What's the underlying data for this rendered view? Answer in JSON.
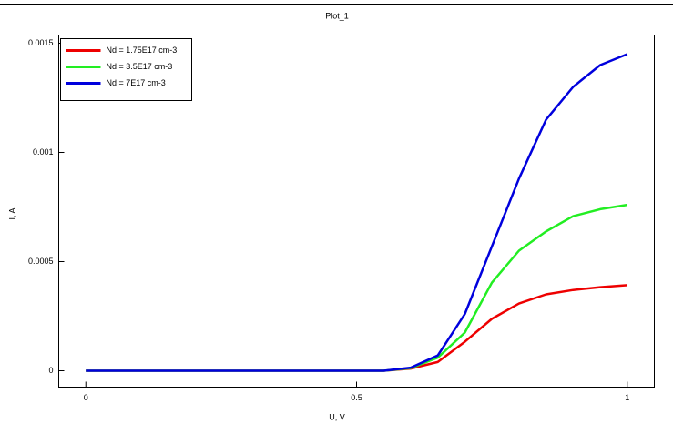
{
  "chart_data": {
    "type": "line",
    "title": "Plot_1",
    "x_label": "U, V",
    "y_label": "I, A",
    "x": [
      0,
      0.05,
      0.1,
      0.15,
      0.2,
      0.25,
      0.3,
      0.35,
      0.4,
      0.45,
      0.5,
      0.55,
      0.6,
      0.65,
      0.7,
      0.75,
      0.8,
      0.85,
      0.9,
      0.95,
      1
    ],
    "series": [
      {
        "name": "Nd = 1.75E17 cm-3",
        "color": "#ee0000",
        "values": [
          0,
          0,
          0,
          0,
          0,
          0,
          0,
          0,
          0,
          0,
          0,
          0,
          1e-05,
          4e-05,
          0.000133,
          0.000238,
          0.000308,
          0.00035,
          0.00037,
          0.000383,
          0.000392
        ]
      },
      {
        "name": "Nd = 3.5E17 cm-3",
        "color": "#22ee22",
        "values": [
          0,
          0,
          0,
          0,
          0,
          0,
          0,
          0,
          0,
          0,
          0,
          0,
          1.2e-05,
          6e-05,
          0.000175,
          0.000404,
          0.00055,
          0.000638,
          0.000708,
          0.00074,
          0.00076
        ]
      },
      {
        "name": "Nd = 7E17 cm-3",
        "color": "#0000dd",
        "values": [
          0,
          0,
          0,
          0,
          0,
          0,
          0,
          0,
          0,
          0,
          0,
          0,
          1.4e-05,
          7e-05,
          0.00026,
          0.00057,
          0.00088,
          0.00115,
          0.0013,
          0.0014,
          0.00145
        ]
      }
    ],
    "xlim": [
      -0.05,
      1.05
    ],
    "xticks": [
      0,
      0.5,
      1
    ],
    "ylim": [
      -7.5e-05,
      0.0015375
    ],
    "yticks": [
      0,
      0.0005,
      0.001,
      0.0015
    ],
    "legend": "upper left"
  }
}
